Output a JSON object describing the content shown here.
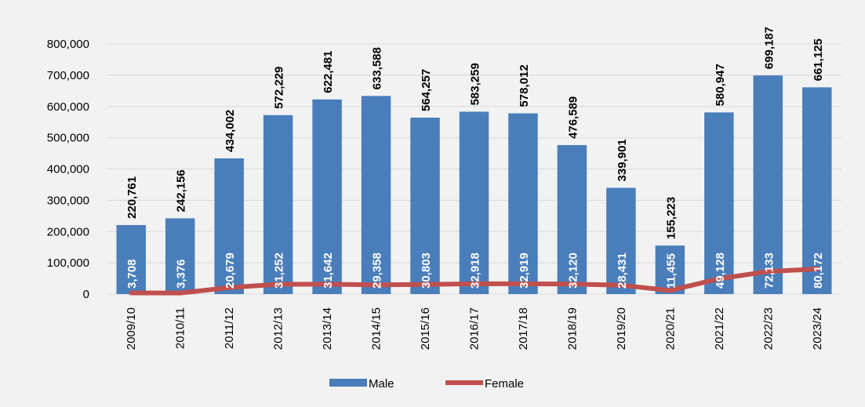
{
  "chart_data": {
    "type": "bar",
    "categories": [
      "2009/10",
      "2010/11",
      "2011/12",
      "2012/13",
      "2013/14",
      "2014/15",
      "2015/16",
      "2016/17",
      "2017/18",
      "2018/19",
      "2019/20",
      "2020/21",
      "2021/22",
      "2022/23",
      "2023/24"
    ],
    "series": [
      {
        "name": "Male",
        "type": "bar",
        "color": "#4a7ebb",
        "values": [
          220761,
          242156,
          434002,
          572229,
          622481,
          633588,
          564257,
          583259,
          578012,
          476589,
          339901,
          155223,
          580947,
          699187,
          661125
        ],
        "value_labels": [
          "220,761",
          "242,156",
          "434,002",
          "572,229",
          "622,481",
          "633,588",
          "564,257",
          "583,259",
          "578,012",
          "476,589",
          "339,901",
          "155,223",
          "580,947",
          "699,187",
          "661,125"
        ]
      },
      {
        "name": "Female",
        "type": "line",
        "color": "#c0504d",
        "values": [
          3708,
          3376,
          20679,
          31252,
          31642,
          29358,
          30803,
          32918,
          32919,
          32120,
          28431,
          11455,
          49128,
          72133,
          80172
        ],
        "value_labels": [
          "3,708",
          "3,376",
          "20,679",
          "31,252",
          "31,642",
          "29,358",
          "30,803",
          "32,918",
          "32,919",
          "32,120",
          "28,431",
          "11,455",
          "49,128",
          "72,133",
          "80,172"
        ]
      }
    ],
    "ylim": [
      0,
      800000
    ],
    "yticks": [
      0,
      {
        "value": 100000,
        "label": "100,000"
      },
      {
        "value": 200000,
        "label": "200,000"
      },
      {
        "value": 300000,
        "label": "300,000"
      },
      {
        "value": 400000,
        "label": "400,000"
      },
      {
        "value": 500000,
        "label": "500,000"
      },
      {
        "value": 600000,
        "label": "600,000"
      },
      {
        "value": 700000,
        "label": "700,000"
      },
      {
        "value": 800000,
        "label": "800,000"
      }
    ],
    "grid": true,
    "legend": "bottom"
  }
}
